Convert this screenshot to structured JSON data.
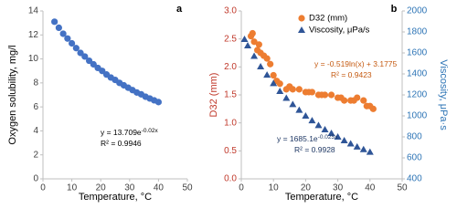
{
  "chart_data": [
    {
      "type": "scatter",
      "panel_label": "a",
      "xlabel": "Temperature, °C",
      "ylabel": "Oxygen solubility, mg/l",
      "xlim": [
        0,
        50
      ],
      "xticks": [
        0,
        10,
        20,
        30,
        40,
        50
      ],
      "ylim": [
        0,
        14
      ],
      "yticks": [
        0,
        2,
        4,
        6,
        8,
        10,
        12,
        14
      ],
      "series": [
        {
          "color": "#4472c4",
          "marker": "circle",
          "x": [
            4,
            5.5,
            7,
            8.5,
            10,
            11.5,
            13,
            14.5,
            16,
            17.5,
            19,
            20.5,
            22,
            23.5,
            25,
            26.5,
            28,
            29.5,
            31,
            32.5,
            34,
            35.5,
            37,
            38.5,
            40
          ],
          "values": [
            13.1,
            12.6,
            12.1,
            11.7,
            11.3,
            10.9,
            10.5,
            10.2,
            9.85,
            9.55,
            9.25,
            9.0,
            8.7,
            8.45,
            8.25,
            8.0,
            7.8,
            7.6,
            7.4,
            7.2,
            7.05,
            6.85,
            6.7,
            6.55,
            6.4
          ]
        }
      ],
      "annotations": [
        {
          "text": "y = 13.709e",
          "exponent": "-0.02x",
          "color": "#000000"
        },
        {
          "text": "R² = 0.9946",
          "color": "#000000"
        }
      ]
    },
    {
      "type": "scatter",
      "panel_label": "b",
      "xlabel": "Temperature, °C",
      "ylabel": "D32 (mm)",
      "ylabel_color": "#c0392b",
      "y2label": "Viscosity, μPa·s",
      "y2label_color": "#2e75b6",
      "xlim": [
        0,
        50
      ],
      "xticks": [
        0,
        10,
        20,
        30,
        40,
        50
      ],
      "ylim": [
        0,
        3
      ],
      "yticks": [
        {
          "value": 0,
          "label": "0.0"
        },
        0.5,
        {
          "value": 1,
          "label": "1.0"
        },
        1.5,
        {
          "value": 2,
          "label": "2.0"
        },
        2.5,
        {
          "value": 3,
          "label": "3.0"
        }
      ],
      "y2lim": [
        400,
        2000
      ],
      "y2ticks": [
        400,
        600,
        800,
        1000,
        1200,
        1400,
        1600,
        1800,
        2000
      ],
      "legend": "upper right",
      "series": [
        {
          "name": "D32 (mm)",
          "color": "#ed7d31",
          "marker": "circle",
          "x": [
            3,
            3.5,
            4,
            5,
            5.5,
            6,
            7,
            8,
            9,
            10,
            11,
            12,
            14,
            15,
            16,
            18,
            20,
            21,
            22,
            24,
            25,
            26,
            28,
            30,
            31,
            32,
            34,
            35,
            36,
            38,
            39,
            40,
            41
          ],
          "values": [
            2.55,
            2.6,
            2.45,
            2.3,
            2.4,
            2.25,
            2.2,
            2.15,
            2.05,
            1.85,
            1.75,
            1.7,
            1.6,
            1.65,
            1.6,
            1.6,
            1.55,
            1.55,
            1.55,
            1.5,
            1.5,
            1.5,
            1.5,
            1.45,
            1.45,
            1.4,
            1.4,
            1.4,
            1.45,
            1.4,
            1.3,
            1.3,
            1.25
          ]
        },
        {
          "name": "Viscosity, μPa/s",
          "color": "#2f5597",
          "marker": "triangle",
          "axis": "y2",
          "x": [
            1,
            2,
            4,
            6,
            8,
            10,
            12,
            14,
            16,
            18,
            20,
            22,
            24,
            26,
            28,
            30,
            32,
            34,
            36,
            38,
            40
          ],
          "values": [
            1730,
            1670,
            1570,
            1470,
            1390,
            1310,
            1235,
            1170,
            1110,
            1055,
            1000,
            955,
            910,
            870,
            835,
            800,
            765,
            735,
            705,
            680,
            655
          ]
        }
      ],
      "annotations": [
        {
          "text": "y = -0.519ln(x) + 3.1775",
          "color": "#c55a11"
        },
        {
          "text": "R² = 0.9423",
          "color": "#c55a11"
        },
        {
          "text": "y = 1685.1e",
          "exponent": "-0.025x",
          "color": "#1f3864"
        },
        {
          "text": "R² = 0.9928",
          "color": "#1f3864"
        }
      ]
    }
  ]
}
